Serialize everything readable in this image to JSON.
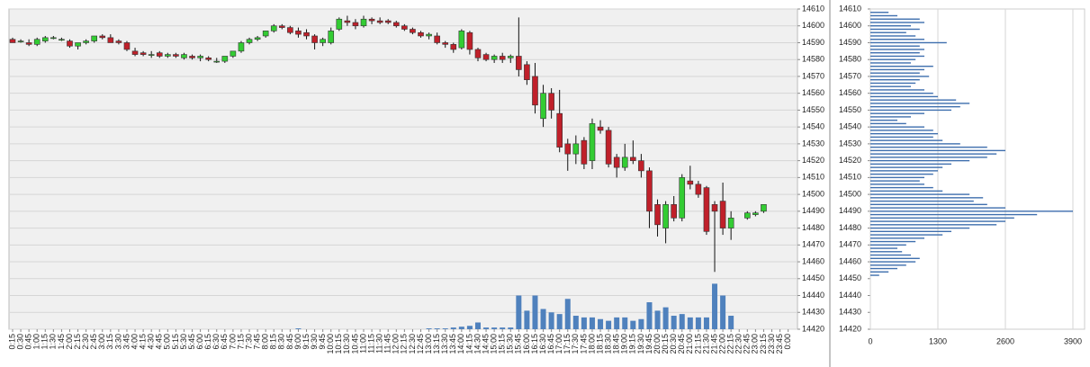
{
  "chart_data": [
    {
      "type": "candlestick",
      "categories": [
        "0:15",
        "0:30",
        "0:45",
        "1:00",
        "1:15",
        "1:30",
        "1:45",
        "2:00",
        "2:15",
        "2:30",
        "2:45",
        "3:00",
        "3:15",
        "3:30",
        "3:45",
        "4:00",
        "4:15",
        "4:30",
        "4:45",
        "5:00",
        "5:15",
        "5:30",
        "5:45",
        "6:00",
        "6:15",
        "6:30",
        "6:45",
        "7:00",
        "7:15",
        "7:30",
        "7:45",
        "8:00",
        "8:15",
        "8:30",
        "8:45",
        "9:00",
        "9:15",
        "9:30",
        "9:45",
        "10:00",
        "10:15",
        "10:30",
        "10:45",
        "11:00",
        "11:15",
        "11:30",
        "11:45",
        "12:00",
        "12:15",
        "12:30",
        "12:45",
        "13:00",
        "13:15",
        "13:30",
        "13:45",
        "14:00",
        "14:15",
        "14:30",
        "14:45",
        "15:00",
        "15:15",
        "15:30",
        "15:45",
        "16:00",
        "16:15",
        "16:30",
        "16:45",
        "17:00",
        "17:15",
        "17:30",
        "17:45",
        "18:00",
        "18:15",
        "18:30",
        "18:45",
        "19:00",
        "19:15",
        "19:30",
        "19:45",
        "20:00",
        "20:15",
        "20:30",
        "20:45",
        "21:00",
        "21:15",
        "21:30",
        "21:45",
        "22:00",
        "22:15",
        "22:30",
        "22:45",
        "23:00",
        "23:15",
        "23:30",
        "23:45",
        "0:00"
      ],
      "open": [
        14592,
        14591,
        14590,
        14589,
        14591,
        14593,
        14592,
        14591,
        14588,
        14590,
        14591,
        14594,
        14593,
        14591,
        14590,
        14585,
        14584,
        14583,
        14584,
        14582,
        14583,
        14581,
        14582,
        14581,
        14581,
        14579,
        14579,
        14582,
        14585,
        14590,
        14592,
        14594,
        14597,
        14600,
        14599,
        14597,
        14596,
        14594,
        14590,
        14590,
        14598,
        14603,
        14602,
        14600,
        14604,
        14603,
        14603,
        14602,
        14600,
        14598,
        14596,
        14594,
        14594,
        14590,
        14589,
        14587,
        14596,
        14586,
        14583,
        14580,
        14582,
        14581,
        14582,
        14577,
        14570,
        14545,
        14560,
        14548,
        14530,
        14524,
        14532,
        14520,
        14540,
        14538,
        14522,
        14516,
        14522,
        14520,
        14514,
        14494,
        14480,
        14494,
        14486,
        14508,
        14506,
        14504,
        14494,
        14496,
        14480,
        null,
        14486,
        14488,
        14490,
        null,
        null,
        null
      ],
      "high": [
        14593,
        14592,
        14592,
        14593,
        14594,
        14594,
        14593,
        14592,
        14590,
        14592,
        14594,
        14595,
        14595,
        14592,
        14591,
        14587,
        14585,
        14585,
        14585,
        14584,
        14584,
        14584,
        14583,
        14583,
        14582,
        14581,
        14582,
        14585,
        14591,
        14593,
        14594,
        14597,
        14601,
        14601,
        14600,
        14599,
        14598,
        14595,
        14593,
        14599,
        14605,
        14606,
        14604,
        14606,
        14605,
        14605,
        14604,
        14603,
        14601,
        14599,
        14597,
        14596,
        14596,
        14591,
        14590,
        14598,
        14597,
        14587,
        14584,
        14583,
        14584,
        14583,
        14605,
        14579,
        14578,
        14565,
        14563,
        14562,
        14533,
        14535,
        14534,
        14545,
        14544,
        14540,
        14524,
        14530,
        14532,
        14524,
        14516,
        14497,
        14496,
        14499,
        14512,
        14517,
        14508,
        14505,
        14496,
        14507,
        14490,
        null,
        14490,
        14490,
        14494,
        null,
        null,
        null
      ],
      "low": [
        14590,
        14590,
        14588,
        14588,
        14590,
        14592,
        14591,
        14587,
        14586,
        14589,
        14590,
        14592,
        14590,
        14589,
        14585,
        14582,
        14582,
        14581,
        14581,
        14581,
        14581,
        14580,
        14580,
        14579,
        14579,
        14578,
        14578,
        14581,
        14584,
        14589,
        14591,
        14593,
        14596,
        14598,
        14595,
        14593,
        14592,
        14586,
        14588,
        14589,
        14597,
        14600,
        14598,
        14599,
        14601,
        14601,
        14601,
        14599,
        14597,
        14595,
        14593,
        14592,
        14589,
        14587,
        14584,
        14586,
        14583,
        14579,
        14579,
        14578,
        14578,
        14578,
        14570,
        14565,
        14548,
        14540,
        14545,
        14525,
        14514,
        14518,
        14515,
        14515,
        14536,
        14516,
        14510,
        14514,
        14518,
        14510,
        14480,
        14475,
        14471,
        14484,
        14484,
        14503,
        14498,
        14476,
        14454,
        14476,
        14473,
        null,
        14485,
        14487,
        14489,
        null,
        null,
        null
      ],
      "close": [
        14590,
        14591,
        14589,
        14592,
        14593,
        14593,
        14592,
        14588,
        14590,
        14591,
        14594,
        14593,
        14590,
        14590,
        14586,
        14583,
        14583,
        14583,
        14582,
        14583,
        14582,
        14583,
        14581,
        14582,
        14580,
        14579,
        14582,
        14585,
        14590,
        14592,
        14593,
        14597,
        14600,
        14599,
        14596,
        14595,
        14594,
        14590,
        14592,
        14597,
        14604,
        14602,
        14600,
        14604,
        14603,
        14602,
        14602,
        14600,
        14598,
        14596,
        14594,
        14595,
        14590,
        14589,
        14586,
        14597,
        14586,
        14581,
        14580,
        14582,
        14580,
        14582,
        14574,
        14568,
        14553,
        14560,
        14550,
        14528,
        14524,
        14530,
        14518,
        14542,
        14538,
        14518,
        14516,
        14522,
        14520,
        14514,
        14490,
        14482,
        14494,
        14486,
        14510,
        14506,
        14500,
        14478,
        14490,
        14480,
        14486,
        null,
        14489,
        14489,
        14494,
        null,
        null,
        null
      ],
      "volume": [
        0,
        0,
        0,
        0,
        0,
        0,
        0,
        0,
        0,
        0,
        0,
        0,
        0,
        0,
        0,
        0,
        0,
        0,
        0,
        0,
        0,
        0,
        0,
        0,
        0,
        0,
        0,
        0,
        0,
        0,
        0,
        0,
        0,
        0,
        0,
        0.5,
        0,
        0,
        0,
        0,
        0,
        0,
        0,
        0,
        0,
        0,
        0,
        0,
        0,
        0,
        0,
        0.5,
        0.5,
        0.5,
        1,
        1.5,
        2,
        4,
        1,
        1,
        1,
        1,
        20,
        11,
        20,
        12,
        10,
        9,
        18,
        8,
        7,
        7,
        6,
        5,
        7,
        7,
        5,
        6,
        16,
        11,
        13,
        8,
        9,
        7,
        7,
        7,
        27,
        20,
        8,
        null,
        0,
        0,
        0,
        null,
        null,
        null
      ],
      "up_color": "#33cc33",
      "down_color": "#c0202a",
      "volume_color": "#4f81bd",
      "ylim": [
        14420,
        14610
      ],
      "yticks": [
        14420,
        14430,
        14440,
        14450,
        14460,
        14470,
        14480,
        14490,
        14500,
        14510,
        14520,
        14530,
        14540,
        14550,
        14560,
        14570,
        14580,
        14590,
        14600,
        14610
      ],
      "grid": true
    },
    {
      "type": "barh",
      "levels": [
        14452,
        14454,
        14456,
        14458,
        14460,
        14462,
        14464,
        14466,
        14468,
        14470,
        14472,
        14474,
        14476,
        14478,
        14480,
        14482,
        14484,
        14486,
        14488,
        14490,
        14492,
        14494,
        14496,
        14498,
        14500,
        14502,
        14504,
        14506,
        14508,
        14510,
        14512,
        14514,
        14516,
        14518,
        14520,
        14522,
        14524,
        14526,
        14528,
        14530,
        14532,
        14534,
        14536,
        14538,
        14540,
        14542,
        14544,
        14546,
        14548,
        14550,
        14552,
        14554,
        14556,
        14558,
        14560,
        14562,
        14564,
        14566,
        14568,
        14570,
        14572,
        14574,
        14576,
        14578,
        14580,
        14582,
        14584,
        14586,
        14588,
        14590,
        14592,
        14594,
        14596,
        14598,
        14600,
        14602,
        14604,
        14606,
        14608
      ],
      "values": [
        170,
        350,
        520,
        690,
        870,
        950,
        780,
        610,
        520,
        690,
        870,
        1040,
        1390,
        1560,
        1910,
        2430,
        2600,
        2770,
        3210,
        3900,
        2600,
        2250,
        1990,
        2170,
        1910,
        1390,
        1210,
        1040,
        950,
        1040,
        1210,
        1300,
        1390,
        1560,
        1910,
        2250,
        2430,
        2600,
        2250,
        1730,
        1390,
        1210,
        1300,
        1210,
        1040,
        690,
        520,
        780,
        1040,
        1560,
        1730,
        1910,
        1650,
        1300,
        1210,
        1040,
        780,
        870,
        950,
        1130,
        950,
        1040,
        1210,
        780,
        870,
        1040,
        950,
        1040,
        950,
        1470,
        1040,
        870,
        690,
        950,
        780,
        1040,
        950,
        520,
        350
      ],
      "color": "#3f6fae",
      "xlim": [
        0,
        3900
      ],
      "xticks": [
        0,
        1300,
        2600,
        3900
      ],
      "ylim": [
        14420,
        14610
      ],
      "yticks": [
        14420,
        14430,
        14440,
        14450,
        14460,
        14470,
        14480,
        14490,
        14500,
        14510,
        14520,
        14530,
        14540,
        14550,
        14560,
        14570,
        14580,
        14590,
        14600,
        14610
      ],
      "grid": true
    }
  ]
}
